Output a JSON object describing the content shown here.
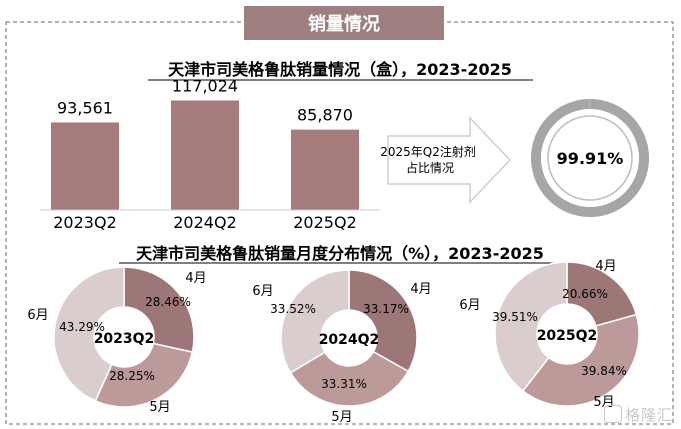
{
  "section_title": "销量情况",
  "watermark": "格隆汇",
  "chart_data": [
    {
      "type": "bar",
      "title": "天津市司美格鲁肽销量情况（盒），2023-2025",
      "categories": [
        "2023Q2",
        "2024Q2",
        "2025Q2"
      ],
      "values": [
        93561,
        117024,
        85870
      ],
      "value_labels": [
        "93,561",
        "117,024",
        "85,870"
      ],
      "ylim": [
        0,
        125000
      ],
      "color": "#a67b7b"
    },
    {
      "type": "pie",
      "title": "",
      "callout_label": "2025年Q2注射剂占比情况",
      "center_label": "99.91%",
      "value": 99.91,
      "color": "#a6a6a6"
    },
    {
      "type": "pie",
      "title": "天津市司美格鲁肽销量月度分布情况（%），2023-2025",
      "colors": [
        "#9d7777",
        "#bc9a9a",
        "#dacdcd"
      ],
      "charts": [
        {
          "center_label": "2023Q2",
          "slices": [
            {
              "label": "4月",
              "value": 28.46,
              "value_label": "28.46%"
            },
            {
              "label": "5月",
              "value": 28.25,
              "value_label": "28.25%"
            },
            {
              "label": "6月",
              "value": 43.29,
              "value_label": "43.29%"
            }
          ]
        },
        {
          "center_label": "2024Q2",
          "slices": [
            {
              "label": "4月",
              "value": 33.17,
              "value_label": "33.17%"
            },
            {
              "label": "5月",
              "value": 33.31,
              "value_label": "33.31%"
            },
            {
              "label": "6月",
              "value": 33.52,
              "value_label": "33.52%"
            }
          ]
        },
        {
          "center_label": "2025Q2",
          "slices": [
            {
              "label": "4月",
              "value": 20.66,
              "value_label": "20.66%"
            },
            {
              "label": "5月",
              "value": 39.84,
              "value_label": "39.84%"
            },
            {
              "label": "6月",
              "value": 39.51,
              "value_label": "39.51%"
            }
          ]
        }
      ]
    }
  ]
}
